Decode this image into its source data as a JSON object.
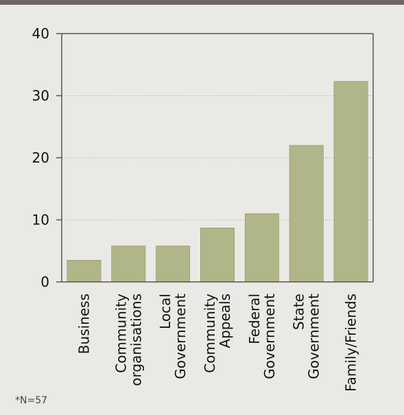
{
  "colors": {
    "background": "#ebe9e5",
    "top_band": "#6e6662",
    "bar": "#b0b687",
    "bar_stroke": "#8d9368",
    "axis": "#555555",
    "grid": "#a7a7a7"
  },
  "note": "*N=57",
  "chart_data": {
    "type": "bar",
    "title": "",
    "xlabel": "",
    "ylabel": "",
    "categories": [
      [
        "Business"
      ],
      [
        "Community",
        "organisations"
      ],
      [
        "Local",
        "Government"
      ],
      [
        "Community",
        "Appeals"
      ],
      [
        "Federal",
        "Government"
      ],
      [
        "State",
        "Government"
      ],
      [
        "Family/Friends"
      ]
    ],
    "values": [
      3.5,
      5.8,
      5.8,
      8.7,
      11,
      22,
      32.3
    ],
    "ylim": [
      0,
      40
    ],
    "yticks": [
      0,
      10,
      20,
      30,
      40
    ],
    "grid": true,
    "legend": "none"
  }
}
